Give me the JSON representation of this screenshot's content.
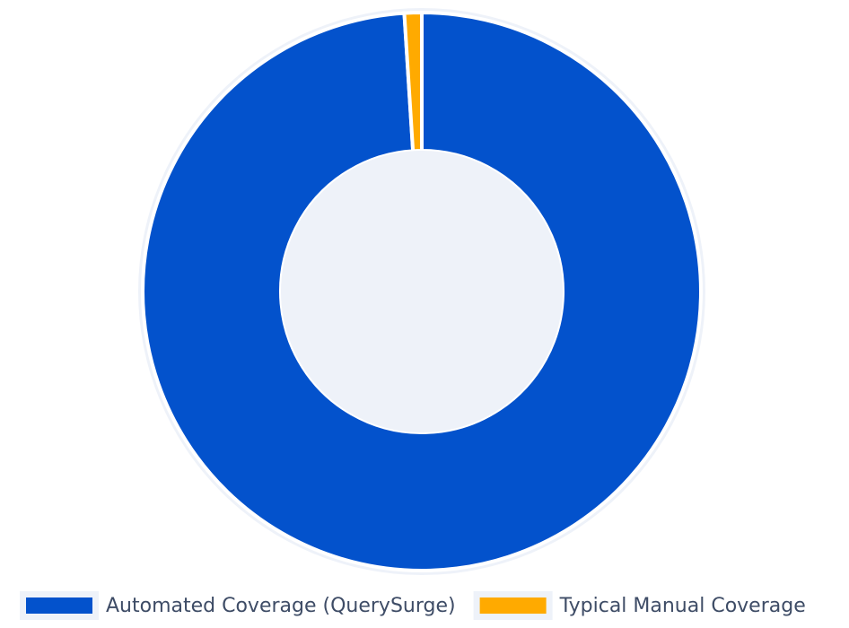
{
  "chart_data": {
    "type": "donut",
    "categories": [
      "Automated Coverage (QuerySurge)",
      "Typical Manual Coverage"
    ],
    "values": [
      99,
      1
    ],
    "colors": [
      "#0352cc",
      "#ffaa00"
    ],
    "legend": "bottom"
  }
}
